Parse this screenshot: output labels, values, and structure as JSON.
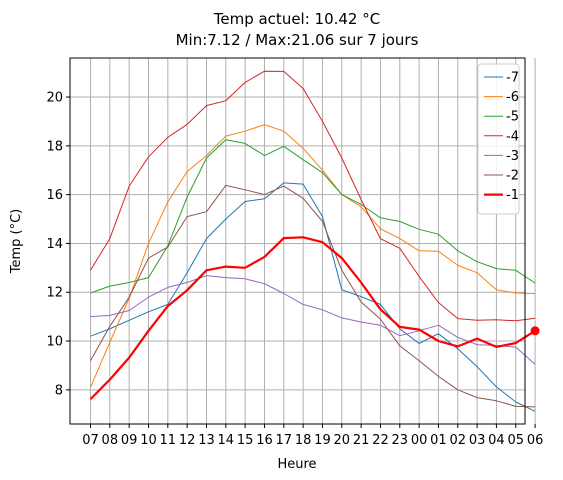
{
  "chart_data": {
    "type": "line",
    "title_line1": "Temp actuel: 10.42 °C",
    "title_line2": "Min:7.12 / Max:21.06 sur 7 jours",
    "xlabel": "Heure",
    "ylabel": "Temp (°C)",
    "categories": [
      "07",
      "08",
      "09",
      "10",
      "11",
      "12",
      "13",
      "14",
      "15",
      "16",
      "17",
      "18",
      "19",
      "20",
      "21",
      "22",
      "23",
      "00",
      "01",
      "02",
      "03",
      "04",
      "05",
      "06"
    ],
    "ylim": [
      6.6,
      21.6
    ],
    "yticks": [
      8,
      10,
      12,
      14,
      16,
      18,
      20
    ],
    "grid": true,
    "legend_position": "top-right",
    "series": [
      {
        "name": "-7",
        "color": "#1f77b4",
        "linewidth": 1,
        "values": [
          10.2,
          10.5,
          10.85,
          11.2,
          11.5,
          12.8,
          14.2,
          15.0,
          15.72,
          15.83,
          16.48,
          16.43,
          15.1,
          12.1,
          11.82,
          11.5,
          10.5,
          9.9,
          10.3,
          9.68,
          8.95,
          8.12,
          7.5,
          7.12
        ]
      },
      {
        "name": "-6",
        "color": "#ff7f0e",
        "linewidth": 1,
        "values": [
          8.1,
          9.95,
          11.75,
          14.0,
          15.7,
          16.95,
          17.6,
          18.4,
          18.6,
          18.87,
          18.6,
          17.9,
          17.0,
          16.0,
          15.5,
          14.6,
          14.2,
          13.7,
          13.68,
          13.1,
          12.8,
          12.1,
          11.97,
          11.95
        ]
      },
      {
        "name": "-5",
        "color": "#2ca02c",
        "linewidth": 1,
        "values": [
          11.97,
          12.25,
          12.4,
          12.6,
          13.9,
          15.9,
          17.5,
          18.25,
          18.1,
          17.6,
          17.98,
          17.43,
          16.9,
          16.0,
          15.6,
          15.05,
          14.9,
          14.58,
          14.38,
          13.7,
          13.25,
          12.97,
          12.9,
          12.38
        ]
      },
      {
        "name": "-4",
        "color": "#d62728",
        "linewidth": 1,
        "values": [
          12.9,
          14.2,
          16.35,
          17.55,
          18.35,
          18.88,
          19.65,
          19.85,
          20.6,
          21.06,
          21.05,
          20.35,
          19.0,
          17.5,
          15.8,
          14.2,
          13.8,
          12.65,
          11.58,
          10.92,
          10.85,
          10.87,
          10.83,
          10.93
        ]
      },
      {
        "name": "-3",
        "color": "#9467bd",
        "linewidth": 1,
        "values": [
          11.0,
          11.05,
          11.25,
          11.8,
          12.2,
          12.4,
          12.68,
          12.6,
          12.55,
          12.35,
          11.95,
          11.5,
          11.28,
          10.95,
          10.78,
          10.65,
          10.22,
          10.42,
          10.65,
          10.15,
          9.85,
          9.82,
          9.75,
          9.05
        ]
      },
      {
        "name": "-2",
        "color": "#8c564b",
        "linewidth": 1,
        "values": [
          9.2,
          10.6,
          11.8,
          13.4,
          13.85,
          15.1,
          15.3,
          16.38,
          16.2,
          16.0,
          16.35,
          15.85,
          14.9,
          12.9,
          11.6,
          10.9,
          9.8,
          9.2,
          8.55,
          8.0,
          7.68,
          7.55,
          7.32,
          7.3
        ]
      },
      {
        "name": "-1",
        "color": "#ff0000",
        "linewidth": 2.2,
        "values": [
          7.62,
          8.42,
          9.32,
          10.42,
          11.43,
          12.08,
          12.9,
          13.05,
          13.0,
          13.45,
          14.22,
          14.25,
          14.05,
          13.4,
          12.4,
          11.3,
          10.58,
          10.47,
          10.0,
          9.78,
          10.1,
          9.76,
          9.92,
          10.42
        ],
        "end_marker": true
      }
    ]
  }
}
